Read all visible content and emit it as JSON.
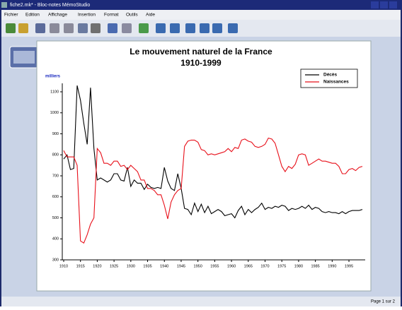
{
  "window": {
    "title": "fiche2.mk* - Bloc-notes MémoStudio",
    "menu": [
      "Fichier",
      "Edition",
      "Affichage",
      "Insertion",
      "Format",
      "Outils",
      "Aide"
    ],
    "status": "Page 1 sur 2"
  },
  "chart_data": {
    "type": "line",
    "title": "Le mouvement naturel de la France",
    "subtitle": "1910-1999",
    "y_label": "milliers",
    "x": [
      1910,
      1911,
      1912,
      1913,
      1914,
      1915,
      1916,
      1917,
      1918,
      1919,
      1920,
      1921,
      1922,
      1923,
      1924,
      1925,
      1926,
      1927,
      1928,
      1929,
      1930,
      1931,
      1932,
      1933,
      1934,
      1935,
      1936,
      1937,
      1938,
      1939,
      1940,
      1941,
      1942,
      1943,
      1944,
      1945,
      1946,
      1947,
      1948,
      1949,
      1950,
      1951,
      1952,
      1953,
      1954,
      1955,
      1956,
      1957,
      1958,
      1959,
      1960,
      1961,
      1962,
      1963,
      1964,
      1965,
      1966,
      1967,
      1968,
      1969,
      1970,
      1971,
      1972,
      1973,
      1974,
      1975,
      1976,
      1977,
      1978,
      1979,
      1980,
      1981,
      1982,
      1983,
      1984,
      1985,
      1986,
      1987,
      1988,
      1989,
      1990,
      1991,
      1992,
      1993,
      1994,
      1995,
      1996,
      1997,
      1998,
      1999
    ],
    "series": [
      {
        "name": "Décès",
        "color": "#000000",
        "values": [
          780,
          800,
          730,
          735,
          1130,
          1060,
          950,
          850,
          1120,
          830,
          680,
          690,
          680,
          670,
          680,
          710,
          710,
          680,
          675,
          740,
          650,
          680,
          665,
          665,
          635,
          660,
          645,
          640,
          645,
          640,
          740,
          675,
          640,
          630,
          710,
          640,
          545,
          540,
          515,
          570,
          530,
          565,
          525,
          555,
          520,
          530,
          540,
          530,
          510,
          515,
          520,
          500,
          535,
          555,
          515,
          540,
          525,
          540,
          550,
          570,
          540,
          550,
          545,
          555,
          550,
          560,
          555,
          535,
          545,
          540,
          545,
          555,
          545,
          560,
          540,
          550,
          545,
          530,
          525,
          530,
          525,
          525,
          520,
          530,
          520,
          530,
          535,
          535,
          535,
          540
        ]
      },
      {
        "name": "Naissances",
        "color": "#e8101a",
        "values": [
          820,
          790,
          790,
          790,
          750,
          390,
          380,
          420,
          470,
          500,
          830,
          810,
          760,
          760,
          750,
          770,
          770,
          745,
          750,
          730,
          750,
          735,
          720,
          680,
          680,
          640,
          640,
          630,
          610,
          610,
          560,
          495,
          575,
          610,
          630,
          640,
          840,
          865,
          870,
          870,
          860,
          825,
          820,
          800,
          805,
          800,
          805,
          810,
          815,
          830,
          815,
          835,
          830,
          870,
          875,
          865,
          860,
          840,
          835,
          840,
          850,
          880,
          875,
          855,
          800,
          745,
          720,
          745,
          735,
          755,
          800,
          805,
          800,
          750,
          760,
          770,
          780,
          770,
          770,
          765,
          760,
          760,
          745,
          710,
          710,
          730,
          735,
          725,
          740,
          745
        ]
      }
    ],
    "xlim": [
      1910,
      1999
    ],
    "xticks": [
      1910,
      1915,
      1920,
      1925,
      1930,
      1935,
      1940,
      1945,
      1950,
      1955,
      1960,
      1965,
      1970,
      1975,
      1980,
      1985,
      1990,
      1995
    ],
    "ylim": [
      300,
      1100
    ],
    "yticks": [
      300,
      400,
      500,
      600,
      700,
      800,
      900,
      1000,
      1100
    ],
    "legend": "upper right"
  }
}
